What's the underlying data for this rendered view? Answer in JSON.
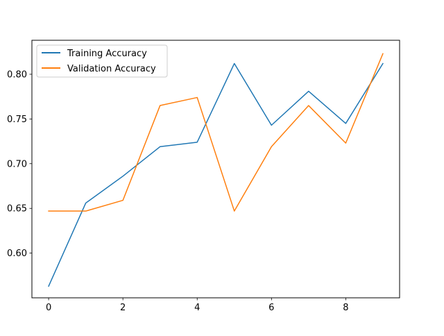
{
  "chart_data": {
    "type": "line",
    "title": "",
    "xlabel": "",
    "ylabel": "",
    "x": [
      0,
      1,
      2,
      3,
      4,
      5,
      6,
      7,
      8,
      9
    ],
    "series": [
      {
        "name": "Training Accuracy",
        "color": "#1f77b4",
        "values": [
          0.563,
          0.656,
          0.686,
          0.719,
          0.724,
          0.812,
          0.743,
          0.781,
          0.745,
          0.812
        ]
      },
      {
        "name": "Validation Accuracy",
        "color": "#ff7f0e",
        "values": [
          0.647,
          0.647,
          0.659,
          0.765,
          0.774,
          0.647,
          0.719,
          0.765,
          0.723,
          0.823
        ]
      }
    ],
    "xlim": [
      -0.45,
      9.45
    ],
    "ylim": [
      0.55,
      0.838
    ],
    "xticks": [
      0,
      2,
      4,
      6,
      8
    ],
    "xtick_labels": [
      "0",
      "2",
      "4",
      "6",
      "8"
    ],
    "yticks": [
      0.6,
      0.65,
      0.7,
      0.75,
      0.8
    ],
    "ytick_labels": [
      "0.60",
      "0.65",
      "0.70",
      "0.75",
      "0.80"
    ],
    "grid": false,
    "legend_position": "upper-left"
  }
}
